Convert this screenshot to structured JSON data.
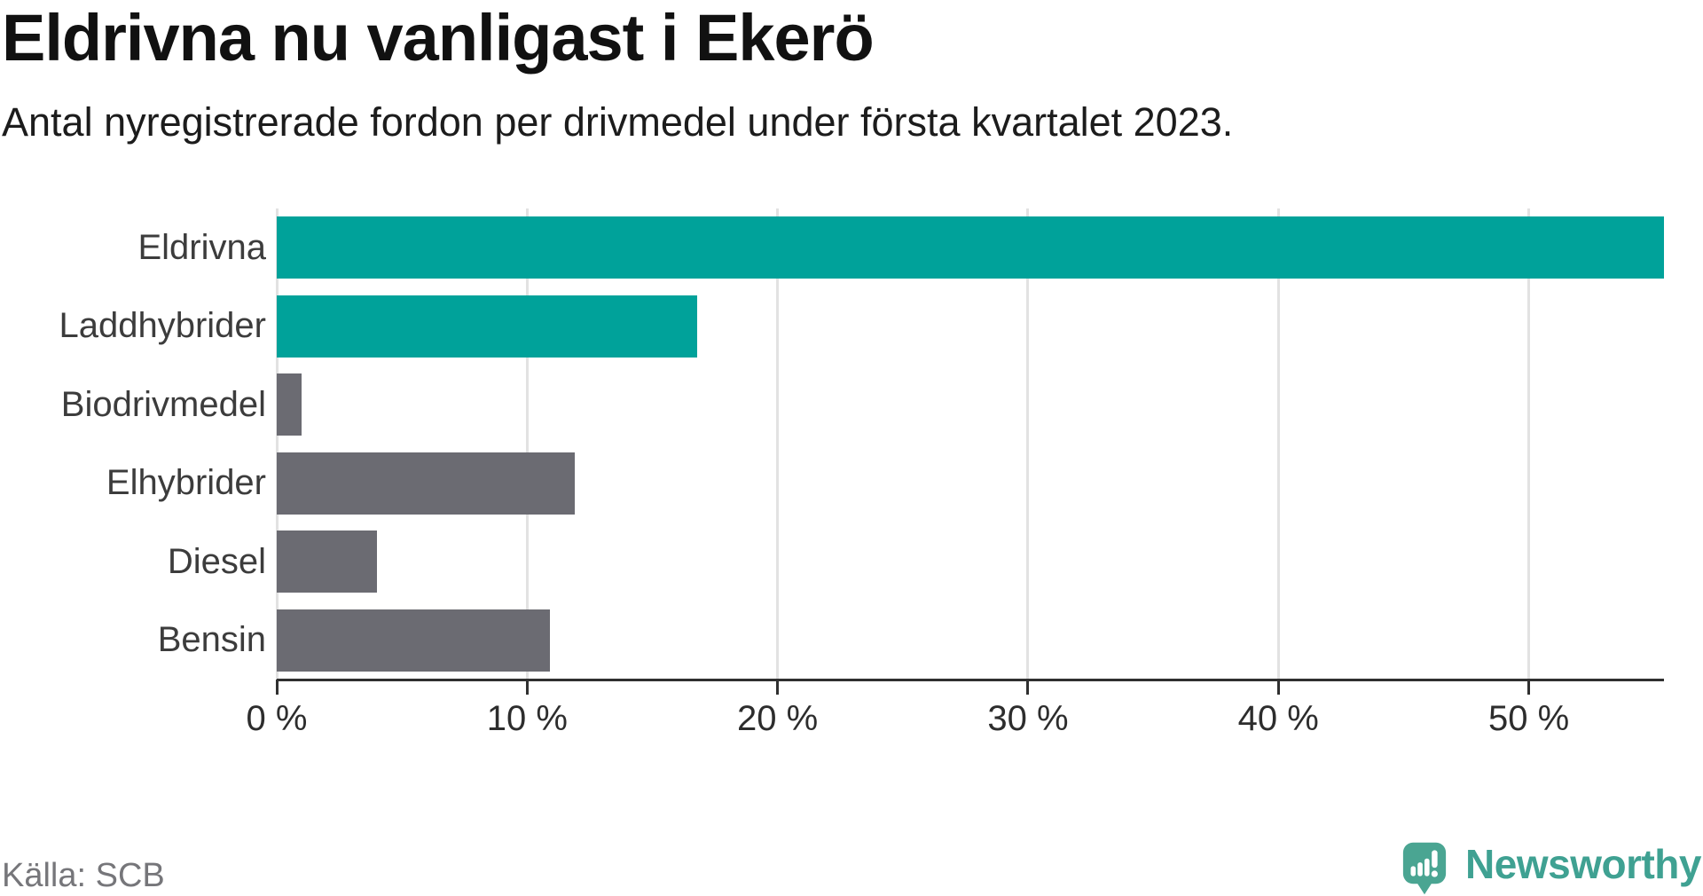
{
  "header": {
    "title": "Eldrivna nu vanligast i Ekerö",
    "subtitle": "Antal nyregistrerade fordon per drivmedel under första kvartalet 2023."
  },
  "chart_data": {
    "type": "bar",
    "orientation": "horizontal",
    "title": "Eldrivna nu vanligast i Ekerö",
    "subtitle": "Antal nyregistrerade fordon per drivmedel under första kvartalet 2023.",
    "categories": [
      "Eldrivna",
      "Laddhybrider",
      "Biodrivmedel",
      "Elhybrider",
      "Diesel",
      "Bensin"
    ],
    "values": [
      55.4,
      16.8,
      1.0,
      11.9,
      4.0,
      10.9
    ],
    "unit": "%",
    "xlim": [
      0,
      55.4
    ],
    "x_ticks": [
      0,
      10,
      20,
      30,
      40,
      50
    ],
    "x_tick_labels": [
      "0 %",
      "10 %",
      "20 %",
      "30 %",
      "40 %",
      "50 %"
    ],
    "bar_colors": [
      "#00a29a",
      "#00a29a",
      "#6b6b72",
      "#6b6b72",
      "#6b6b72",
      "#6b6b72"
    ],
    "highlight_color": "#00a29a",
    "default_color": "#6b6b72",
    "gridline_color": "#e2e2e2",
    "axis_color": "#303030",
    "grid": true,
    "legend": false
  },
  "footer": {
    "source": "Källa: SCB",
    "logo_text": "Newsworthy",
    "logo_color": "#3fa192",
    "logo_bubble_color": "#4aa592"
  }
}
